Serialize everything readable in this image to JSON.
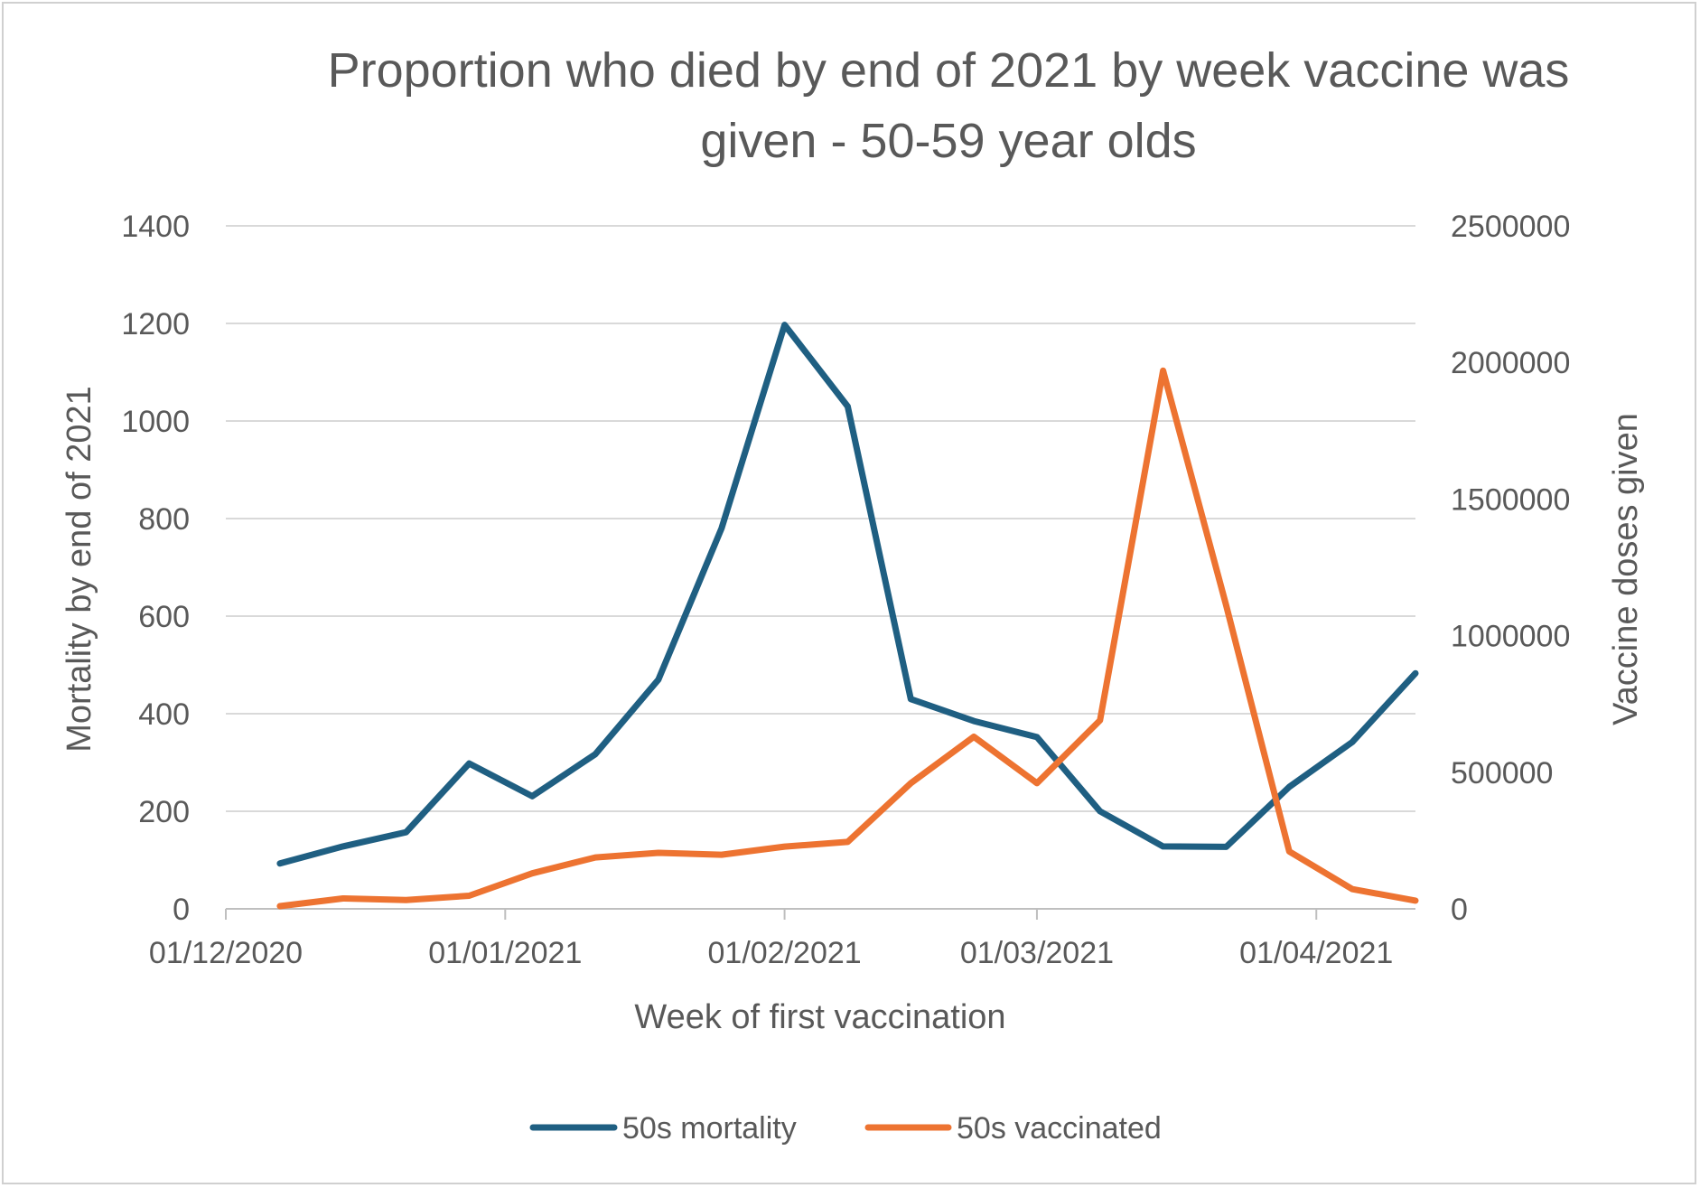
{
  "chart_data": {
    "type": "line",
    "title_line1": "Proportion who died by end of 2021 by week vaccine was",
    "title_line2": "given - 50-59 year olds",
    "xlabel": "Week of first vaccination",
    "ylabel_left": "Mortality by end of 2021",
    "ylabel_right": "Vaccine doses given",
    "x_axis_type": "date",
    "x_ticks": [
      "01/12/2020",
      "01/01/2021",
      "01/02/2021",
      "01/03/2021",
      "01/04/2021"
    ],
    "x": [
      "07/12/2020",
      "14/12/2020",
      "21/12/2020",
      "28/12/2020",
      "04/01/2021",
      "11/01/2021",
      "18/01/2021",
      "25/01/2021",
      "01/02/2021",
      "08/02/2021",
      "15/02/2021",
      "22/02/2021",
      "01/03/2021",
      "08/03/2021",
      "15/03/2021",
      "22/03/2021",
      "29/03/2021",
      "05/04/2021",
      "12/04/2021"
    ],
    "left_axis": {
      "min": 0,
      "max": 1400,
      "ticks": [
        "0",
        "200",
        "400",
        "600",
        "800",
        "1000",
        "1200",
        "1400"
      ]
    },
    "right_axis": {
      "min": 0,
      "max": 2500000,
      "ticks": [
        "0",
        "500000",
        "1000000",
        "1500000",
        "2000000",
        "2500000"
      ]
    },
    "grid": true,
    "legend_position": "bottom",
    "series": [
      {
        "name": "50s mortality",
        "axis": "left",
        "color": "#1f5f82",
        "values": [
          93,
          128,
          157,
          298,
          231,
          317,
          470,
          780,
          1197,
          1030,
          430,
          385,
          352,
          200,
          128,
          127,
          250,
          342,
          483
        ]
      },
      {
        "name": "50s vaccinated",
        "axis": "right",
        "color": "#ed7331",
        "values": [
          10000,
          38000,
          32000,
          48000,
          130000,
          188000,
          205000,
          198000,
          228000,
          245000,
          460000,
          630000,
          460000,
          690000,
          1970000,
          1110000,
          210000,
          72000,
          30000
        ]
      }
    ]
  }
}
